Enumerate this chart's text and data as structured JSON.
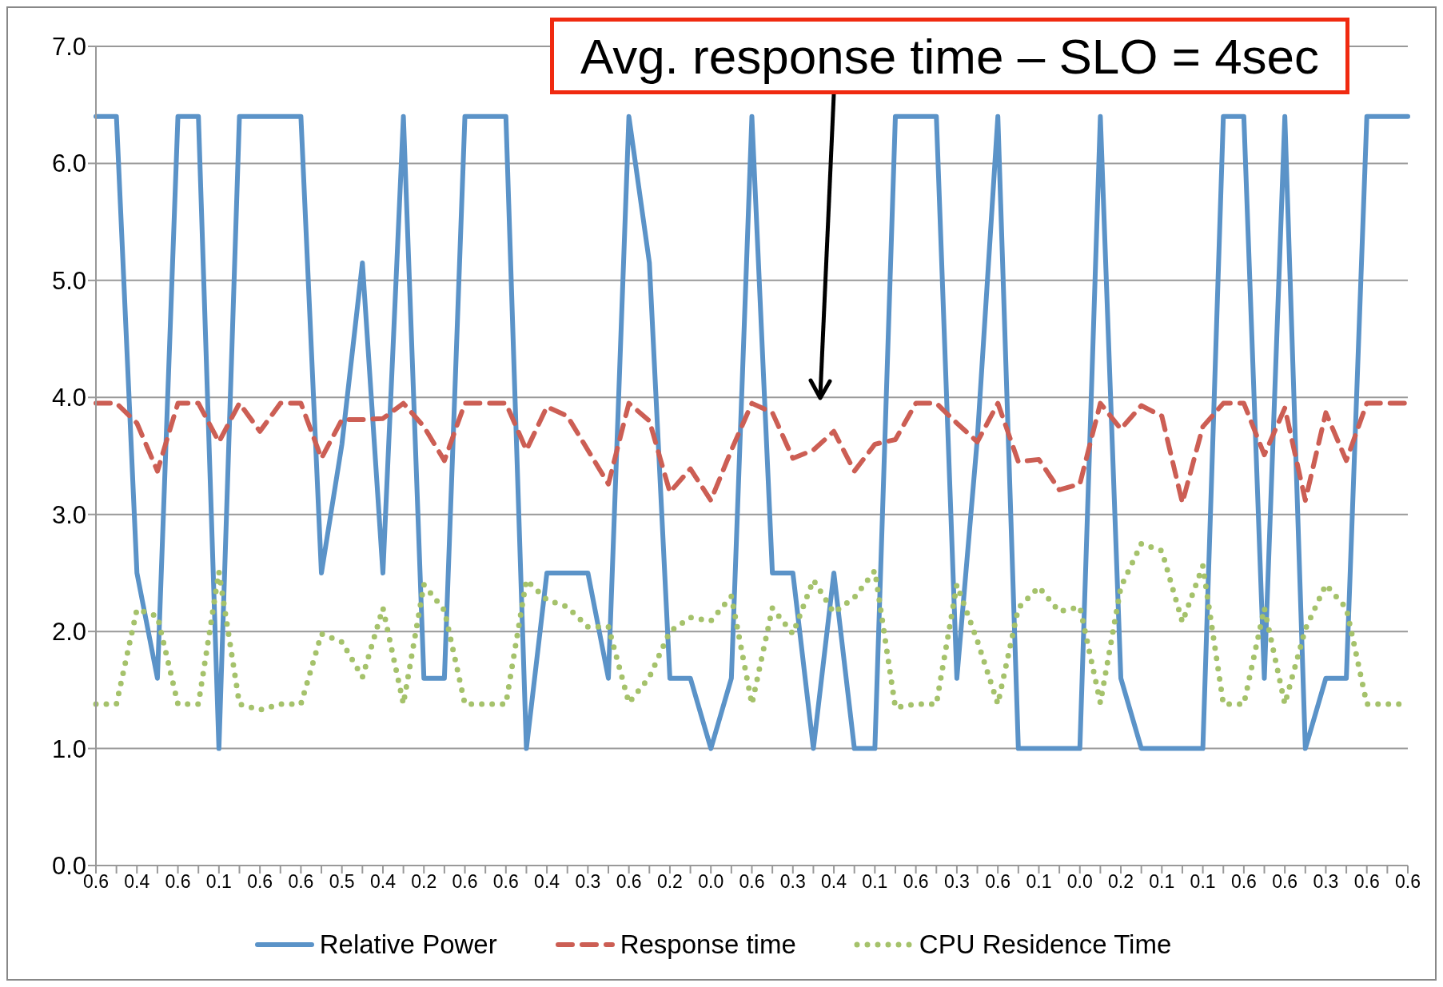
{
  "chart_data": {
    "type": "line",
    "categories": [
      "0.6",
      null,
      "0.4",
      null,
      "0.6",
      null,
      "0.1",
      null,
      "0.6",
      null,
      "0.6",
      null,
      "0.5",
      null,
      "0.4",
      null,
      "0.2",
      null,
      "0.6",
      null,
      "0.6",
      null,
      "0.4",
      null,
      "0.3",
      null,
      "0.6",
      null,
      "0.2",
      null,
      "0.0",
      null,
      "0.6",
      null,
      "0.3",
      null,
      "0.4",
      null,
      "0.1",
      null,
      "0.6",
      null,
      "0.3",
      null,
      "0.6",
      null,
      "0.1",
      null,
      "0.0",
      null,
      "0.2",
      null,
      "0.1",
      null,
      "0.1",
      null,
      "0.6",
      null,
      "0.6",
      null,
      "0.3",
      null,
      "0.6",
      null,
      "0.6"
    ],
    "series": [
      {
        "name": "Relative Power",
        "color": "#5b93c8",
        "line_style": "solid",
        "values": [
          6.4,
          6.4,
          2.5,
          1.6,
          6.4,
          6.4,
          1.0,
          6.4,
          6.4,
          6.4,
          6.4,
          2.5,
          3.6,
          5.15,
          2.5,
          6.4,
          1.6,
          1.6,
          6.4,
          6.4,
          6.4,
          1.0,
          2.5,
          2.5,
          2.5,
          1.6,
          6.4,
          5.15,
          1.6,
          1.6,
          1.0,
          1.6,
          6.4,
          2.5,
          2.5,
          1.0,
          2.5,
          1.0,
          1.0,
          6.4,
          6.4,
          6.4,
          1.6,
          3.65,
          6.4,
          1.0,
          1.0,
          1.0,
          1.0,
          6.4,
          1.6,
          1.0,
          1.0,
          1.0,
          1.0,
          6.4,
          6.4,
          1.6,
          6.4,
          1.0,
          1.6,
          1.6,
          6.4,
          6.4,
          6.4
        ]
      },
      {
        "name": "Response time",
        "color": "#cc5e54",
        "line_style": "dashed",
        "values": [
          3.95,
          3.95,
          3.78,
          3.37,
          3.95,
          3.95,
          3.62,
          3.95,
          3.71,
          3.95,
          3.95,
          3.48,
          3.81,
          3.81,
          3.82,
          3.95,
          3.75,
          3.46,
          3.95,
          3.95,
          3.95,
          3.55,
          3.92,
          3.84,
          3.55,
          3.26,
          3.95,
          3.8,
          3.19,
          3.39,
          3.12,
          3.55,
          3.95,
          3.87,
          3.48,
          3.55,
          3.71,
          3.37,
          3.6,
          3.64,
          3.95,
          3.95,
          3.78,
          3.62,
          3.95,
          3.45,
          3.47,
          3.21,
          3.26,
          3.95,
          3.73,
          3.93,
          3.84,
          3.1,
          3.75,
          3.95,
          3.95,
          3.51,
          3.91,
          3.12,
          3.87,
          3.46,
          3.95,
          3.95,
          3.95
        ]
      },
      {
        "name": "CPU Residence Time",
        "color": "#a5c26b",
        "line_style": "dotted",
        "values": [
          1.38,
          1.38,
          2.19,
          2.13,
          1.38,
          1.38,
          2.51,
          1.38,
          1.33,
          1.38,
          1.38,
          1.98,
          1.91,
          1.61,
          2.2,
          1.38,
          2.4,
          2.18,
          1.38,
          1.38,
          1.38,
          2.44,
          2.27,
          2.21,
          2.04,
          2.04,
          1.39,
          1.61,
          2.0,
          2.12,
          2.09,
          2.3,
          1.38,
          2.2,
          1.98,
          2.44,
          2.16,
          2.29,
          2.52,
          1.35,
          1.38,
          1.38,
          2.4,
          1.92,
          1.38,
          2.2,
          2.38,
          2.17,
          2.21,
          1.39,
          2.38,
          2.75,
          2.69,
          2.08,
          2.56,
          1.38,
          1.38,
          2.2,
          1.38,
          2.02,
          2.4,
          2.2,
          1.38,
          1.38,
          1.38
        ]
      }
    ],
    "ylim": [
      0,
      7
    ],
    "yticks": [
      {
        "value": 0,
        "label": "0.0"
      },
      {
        "value": 1,
        "label": "1.0"
      },
      {
        "value": 2,
        "label": "2.0"
      },
      {
        "value": 3,
        "label": "3.0"
      },
      {
        "value": 4,
        "label": "4.0"
      },
      {
        "value": 5,
        "label": "5.0"
      },
      {
        "value": 6,
        "label": "6.0"
      },
      {
        "value": 7,
        "label": "7.0"
      }
    ],
    "grid": "y",
    "legend": "bottom",
    "marker": "none",
    "annotations": [
      "Avg. response time – SLO = 4sec"
    ]
  }
}
